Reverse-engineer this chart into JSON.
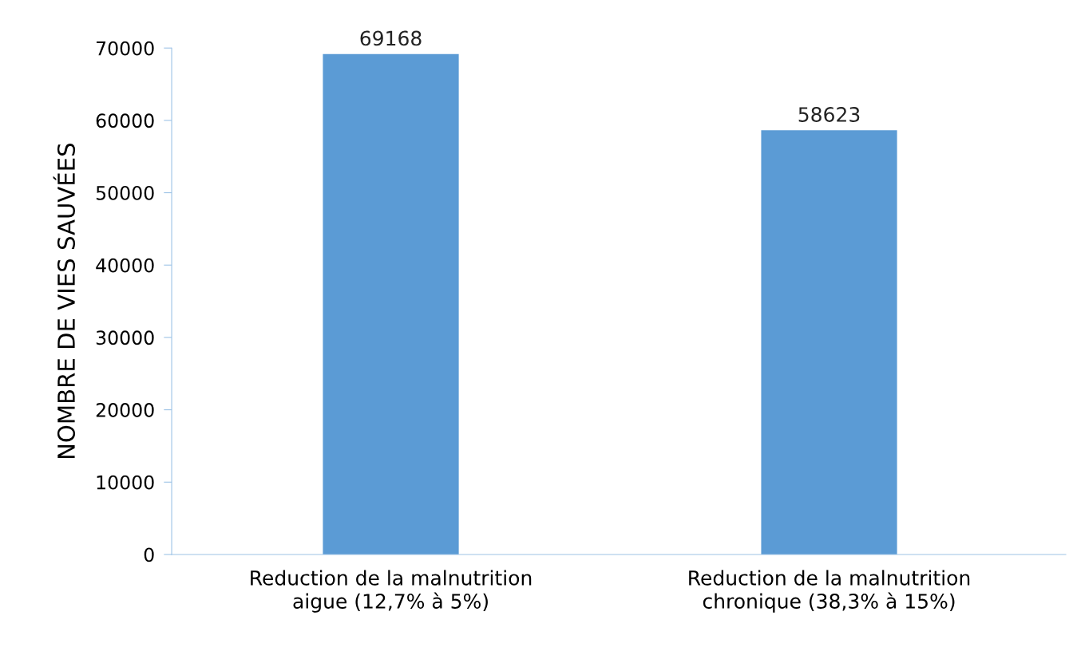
{
  "chart_data": {
    "type": "bar",
    "ylabel": "NOMBRE DE VIES SAUVÉES",
    "categories": [
      "Reduction de la malnutrition\naigue (12,7% à 5%)",
      "Reduction de la malnutrition\nchronique (38,3% à 15%)"
    ],
    "values": [
      69168,
      58623
    ],
    "color": "#5b9bd5",
    "ylim": [
      0,
      70000
    ],
    "yticks": [
      0,
      10000,
      20000,
      30000,
      40000,
      50000,
      60000,
      70000
    ],
    "data_labels": true,
    "grid": false,
    "legend": false
  }
}
